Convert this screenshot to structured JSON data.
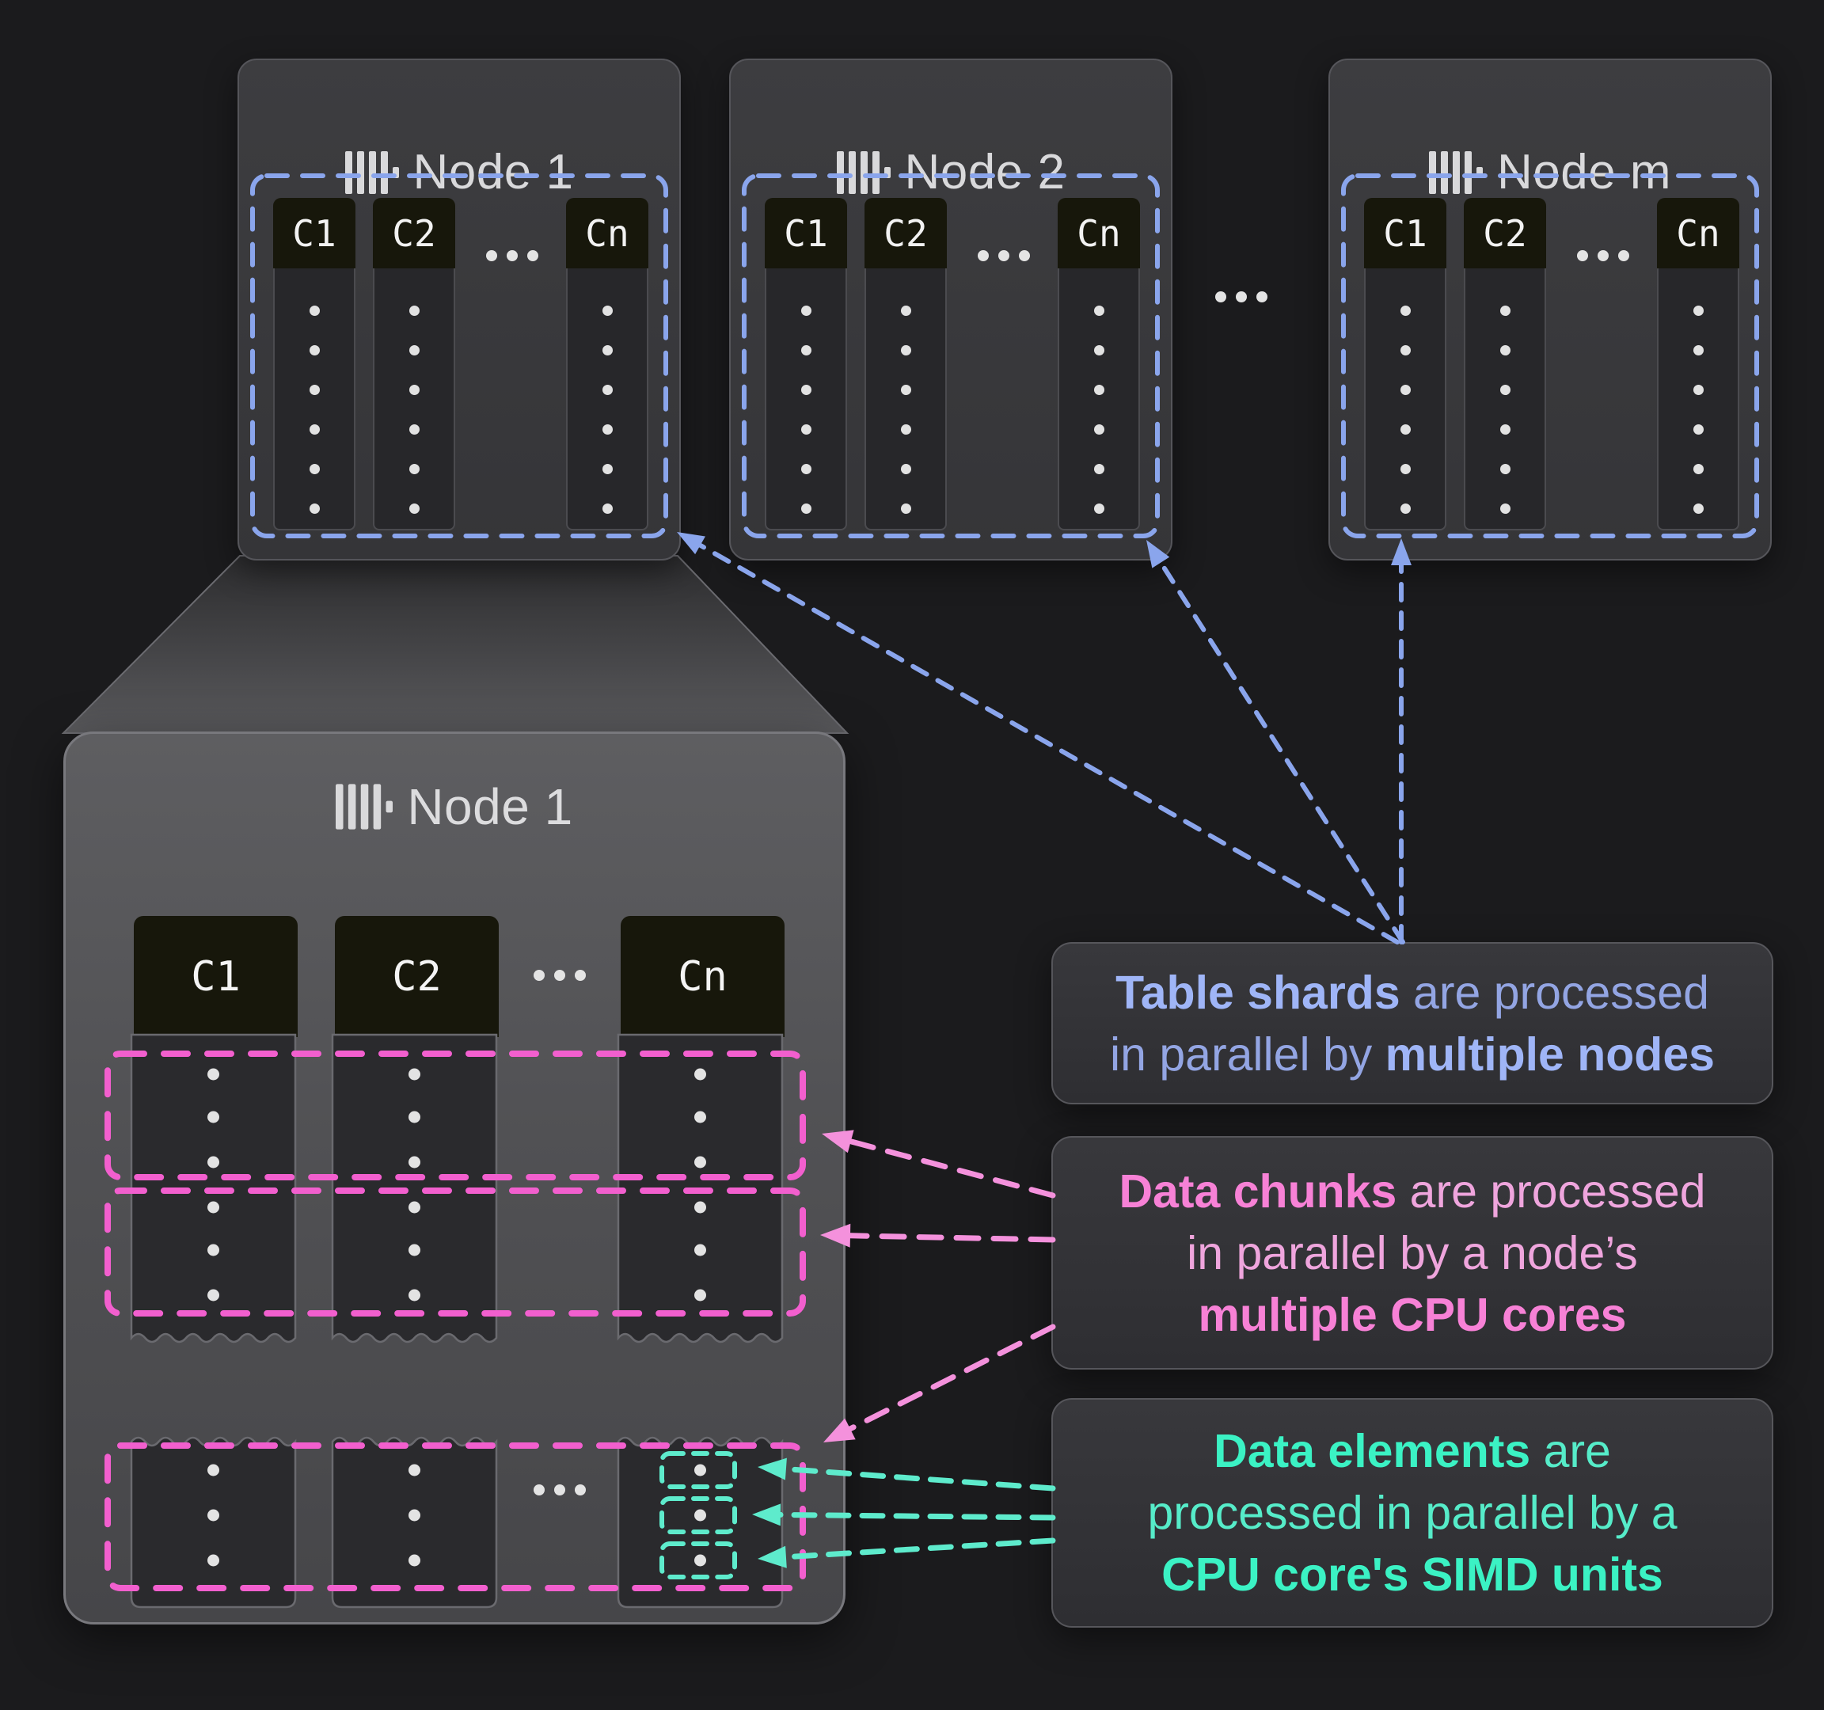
{
  "diagram": {
    "nodes": [
      {
        "title": "Node 1",
        "columns": [
          "C1",
          "C2",
          "Cn"
        ]
      },
      {
        "title": "Node 2",
        "columns": [
          "C1",
          "C2",
          "Cn"
        ]
      },
      {
        "title": "Node m",
        "columns": [
          "C1",
          "C2",
          "Cn"
        ]
      }
    ],
    "zoom_node": {
      "title": "Node 1",
      "columns": [
        "C1",
        "C2",
        "Cn"
      ]
    },
    "dots_per_column": 6,
    "chunks_shown": 3,
    "rows_per_chunk": 3,
    "highlighted_elements": 3
  },
  "callouts": [
    {
      "name": "table-shards",
      "lines": [
        [
          {
            "text": "Table shards",
            "bold": true
          },
          {
            "text": " are processed",
            "bold": false
          }
        ],
        [
          {
            "text": "in parallel by ",
            "bold": false
          },
          {
            "text": "multiple nodes",
            "bold": true
          }
        ]
      ]
    },
    {
      "name": "data-chunks",
      "lines": [
        [
          {
            "text": "Data chunks",
            "bold": true
          },
          {
            "text": " are processed",
            "bold": false
          }
        ],
        [
          {
            "text": "in parallel by a node’s",
            "bold": false
          }
        ],
        [
          {
            "text": "multiple CPU cores",
            "bold": true
          }
        ]
      ]
    },
    {
      "name": "data-elements",
      "lines": [
        [
          {
            "text": "Data elements",
            "bold": true
          },
          {
            "text": " are",
            "bold": false
          }
        ],
        [
          {
            "text": "processed in parallel by a",
            "bold": false
          }
        ],
        [
          {
            "text": "CPU core's SIMD units",
            "bold": true
          }
        ]
      ]
    }
  ],
  "palette": {
    "background": "#1b1b1d",
    "node_fill": "#3a3a3d",
    "zoom_node_fill_top": "#5e5e61",
    "zoom_node_fill_bottom": "#464649",
    "column_header_fill": "#17170b",
    "column_body_fill": "#2a2a2d",
    "shard_blue": "#8aa5ec",
    "chunk_pink": "#f25fce",
    "arrow_pink": "#f491dc",
    "element_teal": "#5eebcc",
    "text_light": "#d9d9db",
    "callout_blue_text": "#93a5e3",
    "callout_pink_text": "#efa5dd",
    "callout_teal_text": "#56ecc9"
  }
}
